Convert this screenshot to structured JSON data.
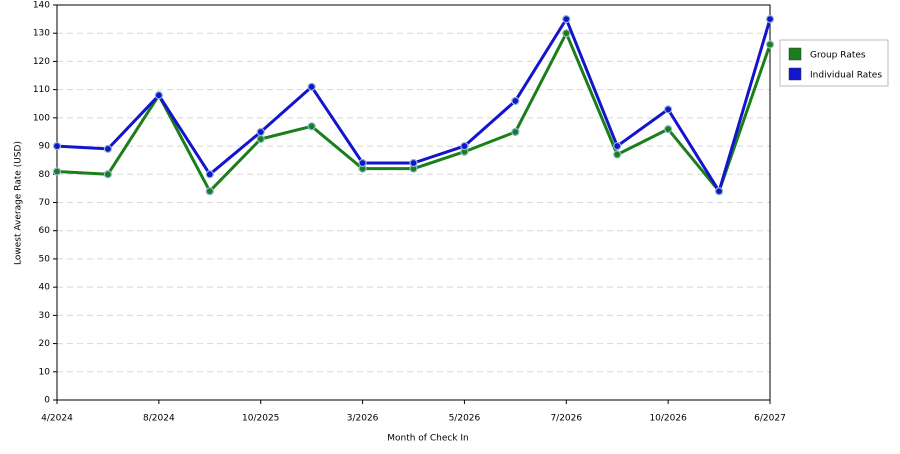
{
  "chart_data": {
    "type": "line",
    "x_label": "Month of Check In",
    "y_label": "Lowest Average Rate (USD)",
    "categories": [
      "4/2024",
      null,
      "8/2024",
      null,
      "10/2025",
      null,
      "3/2026",
      null,
      "5/2026",
      null,
      "7/2026",
      null,
      "10/2026",
      null,
      "6/2027"
    ],
    "series": [
      {
        "name": "Group Rates",
        "color": "#1a7f1a",
        "values": [
          81,
          80,
          108,
          74,
          92.5,
          97,
          82,
          82,
          88,
          95,
          130,
          87,
          96,
          74,
          126
        ]
      },
      {
        "name": "Individual Rates",
        "color": "#1414cc",
        "values": [
          90,
          89,
          108,
          80,
          95,
          111,
          84,
          84,
          90,
          106,
          135,
          90,
          103,
          74,
          135
        ]
      }
    ],
    "ylim": [
      0,
      140
    ],
    "yticks": [
      0,
      10,
      20,
      30,
      40,
      50,
      60,
      70,
      80,
      90,
      100,
      110,
      120,
      130,
      140
    ],
    "grid": true,
    "legend": "right"
  }
}
